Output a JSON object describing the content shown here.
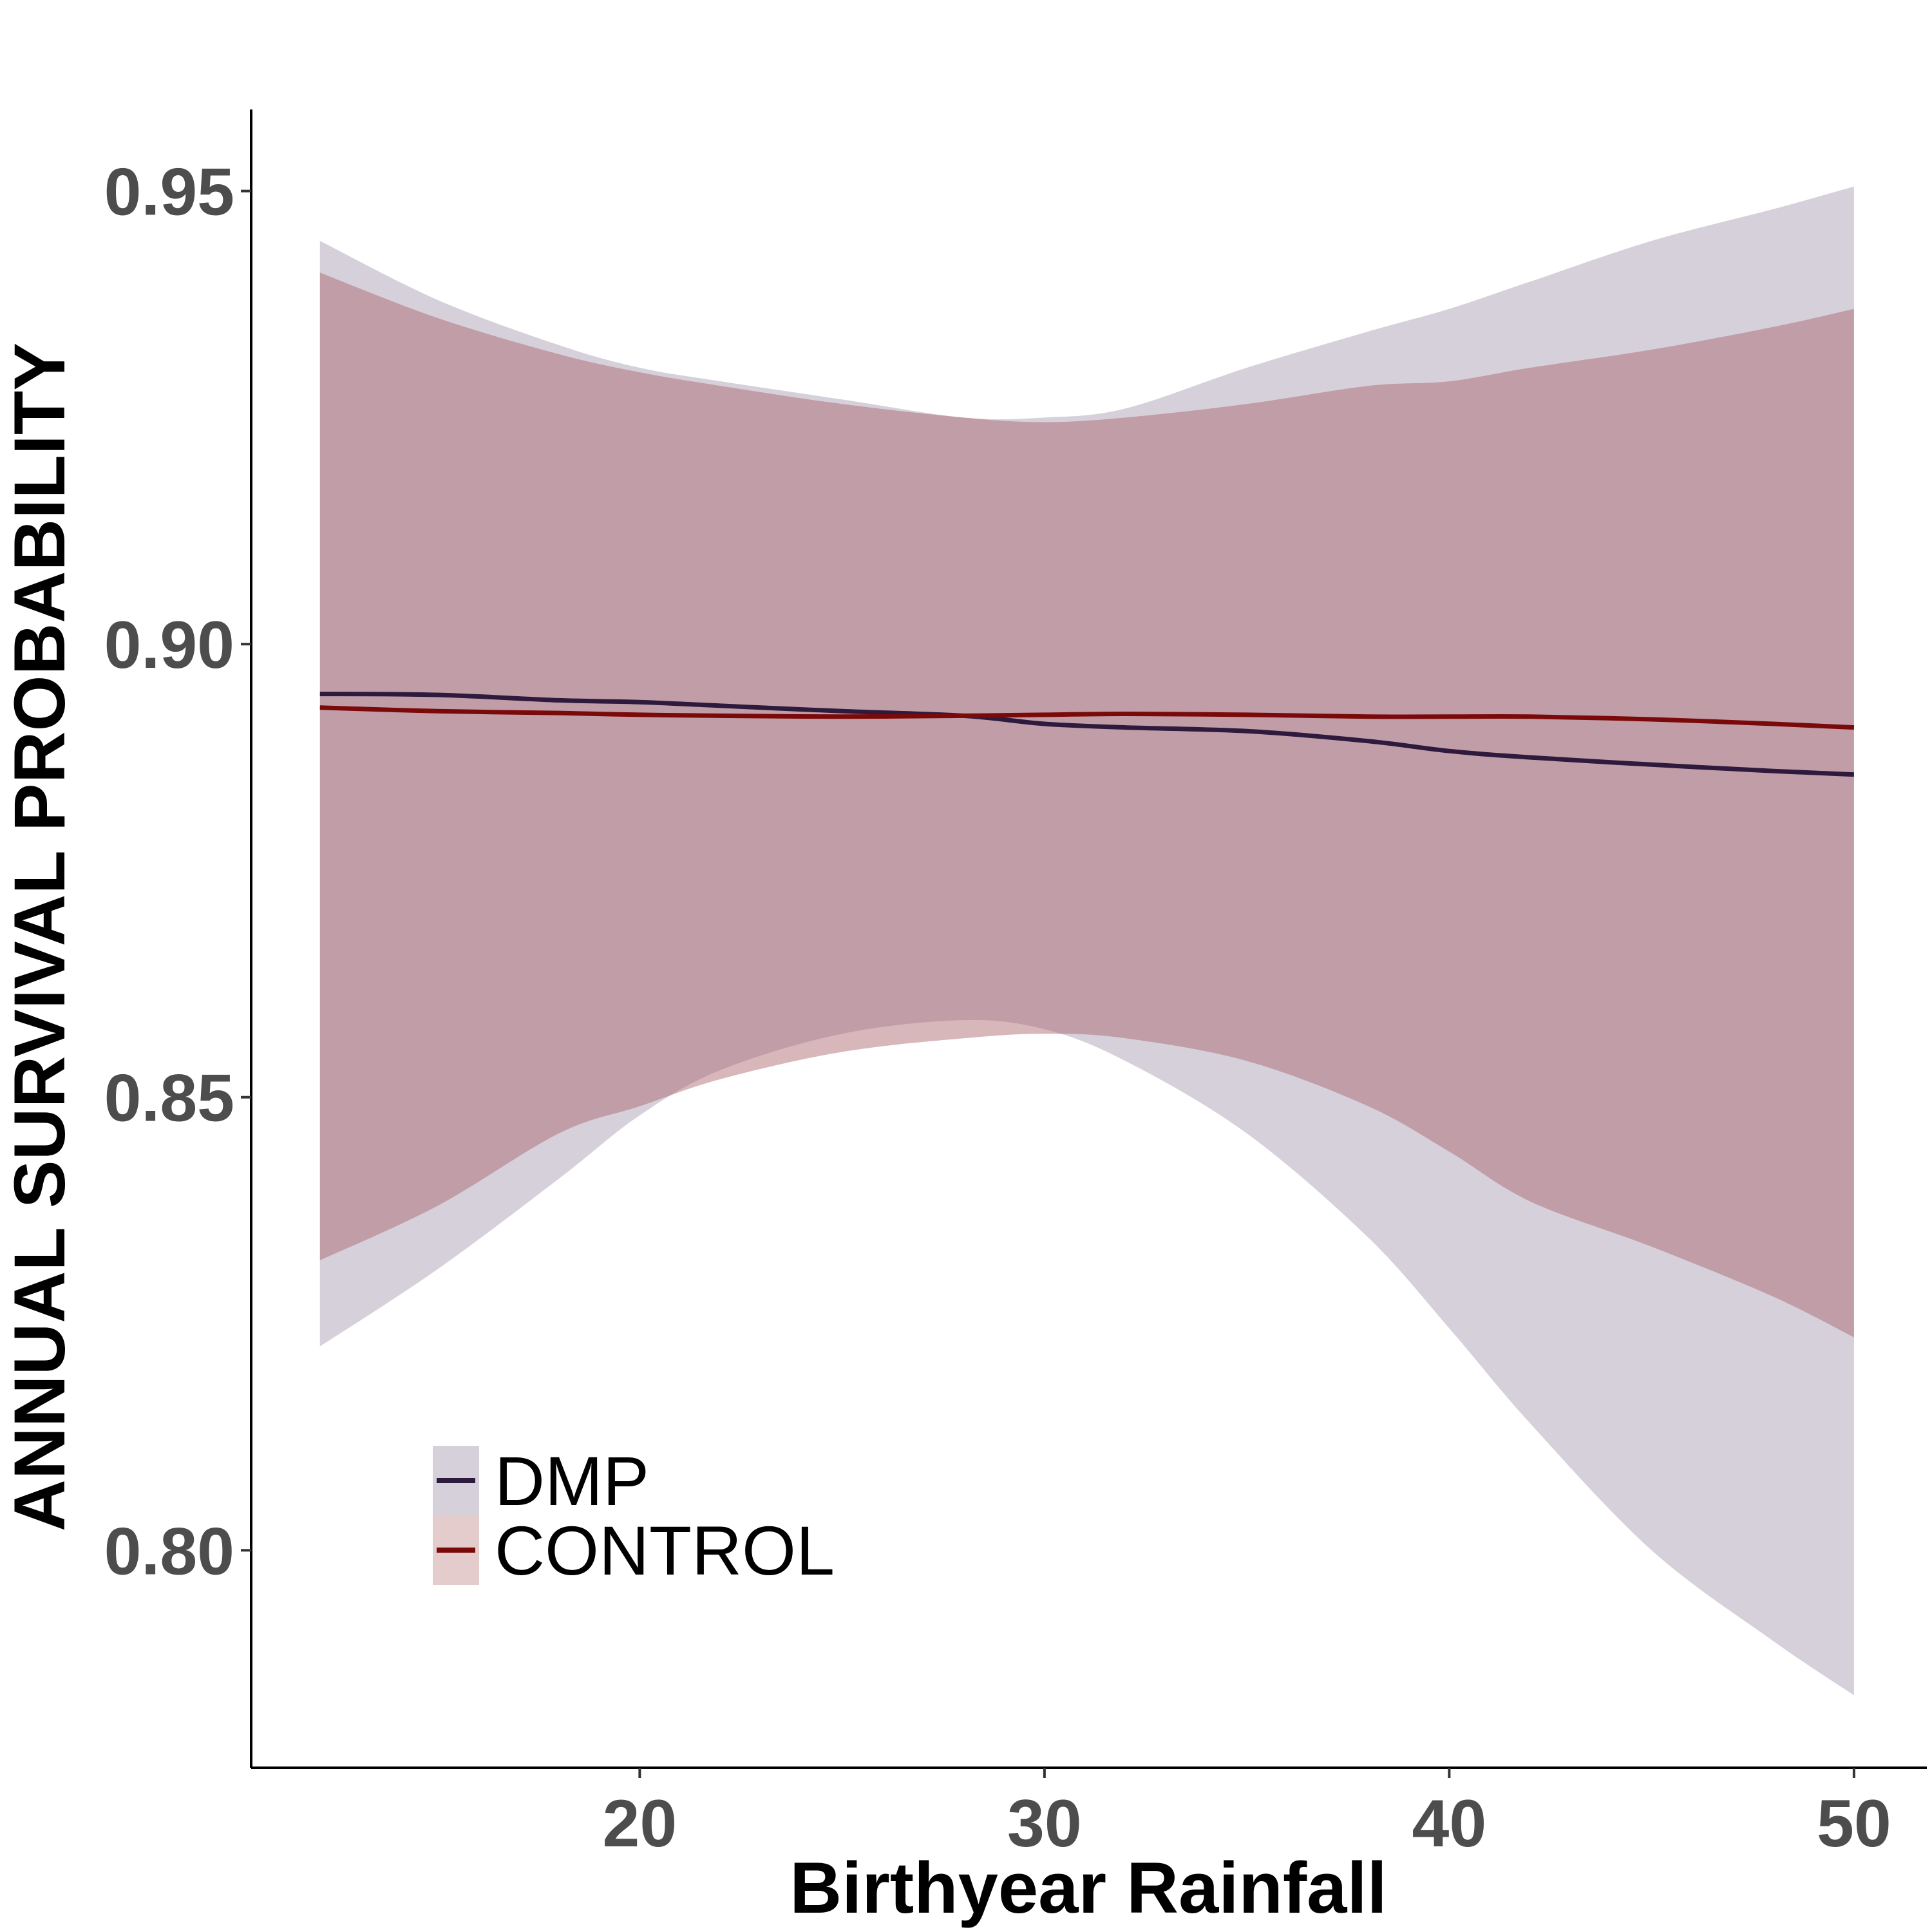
{
  "chart_data": {
    "type": "line",
    "xlabel": "Birthyear Rainfall",
    "ylabel": "ANNUAL SURVIVAL PROBABILITY",
    "xlim": [
      10.4,
      51.8
    ],
    "ylim": [
      0.776,
      0.959
    ],
    "xticks": [
      20,
      30,
      40,
      50
    ],
    "xtick_labels": [
      "20",
      "30",
      "40",
      "50"
    ],
    "yticks": [
      0.8,
      0.85,
      0.9,
      0.95
    ],
    "ytick_labels": [
      "0.80",
      "0.85",
      "0.90",
      "0.95"
    ],
    "grid": false,
    "legend_position": "bottom-left",
    "series": [
      {
        "name": "DMP",
        "line_color": "#2d1a3d",
        "ribbon_color": "#d6d0da",
        "x": [
          12.1,
          15,
          18,
          20,
          22,
          25,
          28,
          30,
          32,
          35,
          38,
          40,
          42,
          45,
          48,
          50
        ],
        "y": [
          0.8945,
          0.8944,
          0.8938,
          0.8936,
          0.8932,
          0.8926,
          0.8921,
          0.8912,
          0.8908,
          0.8904,
          0.8893,
          0.8882,
          0.8875,
          0.8867,
          0.886,
          0.8856
        ],
        "lower": [
          0.8225,
          0.831,
          0.841,
          0.848,
          0.853,
          0.857,
          0.8585,
          0.8575,
          0.854,
          0.846,
          0.8345,
          0.8245,
          0.814,
          0.8,
          0.79,
          0.784
        ],
        "upper": [
          0.9445,
          0.938,
          0.933,
          0.9305,
          0.929,
          0.927,
          0.925,
          0.925,
          0.926,
          0.9305,
          0.9345,
          0.937,
          0.94,
          0.9445,
          0.948,
          0.9505
        ]
      },
      {
        "name": "CONTROL",
        "line_color": "#7a0a0a",
        "ribbon_color": "#e5cccc",
        "x": [
          12.1,
          15,
          18,
          20,
          22,
          25,
          28,
          30,
          32,
          35,
          38,
          40,
          42,
          45,
          48,
          50
        ],
        "y": [
          0.893,
          0.8926,
          0.8924,
          0.8922,
          0.8921,
          0.892,
          0.8921,
          0.8922,
          0.8923,
          0.8922,
          0.892,
          0.892,
          0.892,
          0.8917,
          0.8912,
          0.8908
        ],
        "lower": [
          0.832,
          0.838,
          0.846,
          0.849,
          0.852,
          0.855,
          0.8565,
          0.857,
          0.8565,
          0.854,
          0.849,
          0.844,
          0.8385,
          0.8335,
          0.828,
          0.8235
        ],
        "upper": [
          0.941,
          0.936,
          0.932,
          0.93,
          0.9285,
          0.9265,
          0.925,
          0.9245,
          0.925,
          0.9265,
          0.9285,
          0.929,
          0.9305,
          0.9325,
          0.935,
          0.937
        ]
      }
    ]
  }
}
